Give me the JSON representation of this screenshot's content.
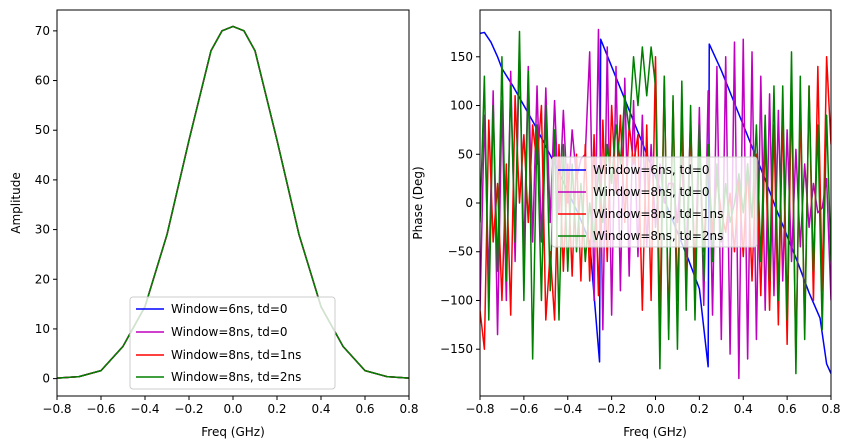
{
  "chart_data": [
    {
      "type": "line",
      "title": "",
      "xlabel": "Freq (GHz)",
      "ylabel": "Amplitude",
      "xlim": [
        -0.8,
        0.8
      ],
      "ylim": [
        -3.5,
        74.2
      ],
      "xticks": [
        -0.8,
        -0.6,
        -0.4,
        -0.2,
        0.0,
        0.2,
        0.4,
        0.6,
        0.8
      ],
      "xtick_labels": [
        "−0.8",
        "−0.6",
        "−0.4",
        "−0.2",
        "0.0",
        "0.2",
        "0.4",
        "0.6",
        "0.8"
      ],
      "yticks": [
        0,
        10,
        20,
        30,
        40,
        50,
        60,
        70
      ],
      "ytick_labels": [
        "0",
        "10",
        "20",
        "30",
        "40",
        "50",
        "60",
        "70"
      ],
      "grid": false,
      "legend_position": "lower-center",
      "series": [
        {
          "name": "Window=6ns, td=0",
          "color": "#0000ff",
          "x": [
            -0.8,
            -0.7,
            -0.6,
            -0.5,
            -0.4,
            -0.3,
            -0.2,
            -0.1,
            -0.05,
            0.0,
            0.05,
            0.1,
            0.2,
            0.3,
            0.4,
            0.5,
            0.6,
            0.7,
            0.8
          ],
          "y": [
            0.1,
            0.4,
            1.6,
            6.5,
            14.5,
            29,
            48,
            66,
            70,
            70.9,
            70,
            66,
            48,
            29,
            14.5,
            6.5,
            1.6,
            0.4,
            0.1
          ]
        },
        {
          "name": "Window=8ns, td=0",
          "color": "#bf00bf",
          "x": [
            -0.8,
            -0.7,
            -0.6,
            -0.5,
            -0.4,
            -0.3,
            -0.2,
            -0.1,
            -0.05,
            0.0,
            0.05,
            0.1,
            0.2,
            0.3,
            0.4,
            0.5,
            0.6,
            0.7,
            0.8
          ],
          "y": [
            0.1,
            0.4,
            1.6,
            6.5,
            14.5,
            29,
            48,
            66,
            70,
            70.9,
            70,
            66,
            48,
            29,
            14.5,
            6.5,
            1.6,
            0.4,
            0.1
          ]
        },
        {
          "name": "Window=8ns, td=1ns",
          "color": "#ff0000",
          "x": [
            -0.8,
            -0.7,
            -0.6,
            -0.5,
            -0.4,
            -0.3,
            -0.2,
            -0.1,
            -0.05,
            0.0,
            0.05,
            0.1,
            0.2,
            0.3,
            0.4,
            0.5,
            0.6,
            0.7,
            0.8
          ],
          "y": [
            0.1,
            0.4,
            1.6,
            6.5,
            14.5,
            29,
            48,
            66,
            70,
            70.9,
            70,
            66,
            48,
            29,
            14.5,
            6.5,
            1.6,
            0.4,
            0.1
          ]
        },
        {
          "name": "Window=8ns, td=2ns",
          "color": "#008000",
          "x": [
            -0.8,
            -0.7,
            -0.6,
            -0.5,
            -0.4,
            -0.3,
            -0.2,
            -0.1,
            -0.05,
            0.0,
            0.05,
            0.1,
            0.2,
            0.3,
            0.4,
            0.5,
            0.6,
            0.7,
            0.8
          ],
          "y": [
            0.1,
            0.4,
            1.6,
            6.5,
            14.5,
            29,
            48,
            66,
            70,
            70.9,
            70,
            66,
            48,
            29,
            14.5,
            6.5,
            1.6,
            0.4,
            0.1
          ]
        }
      ]
    },
    {
      "type": "line",
      "title": "",
      "xlabel": "Freq (GHz)",
      "ylabel": "Phase (Deg)",
      "xlim": [
        -0.8,
        0.8
      ],
      "ylim": [
        -198,
        198
      ],
      "xticks": [
        -0.8,
        -0.6,
        -0.4,
        -0.2,
        0.0,
        0.2,
        0.4,
        0.6,
        0.8
      ],
      "xtick_labels": [
        "−0.8",
        "−0.6",
        "−0.4",
        "−0.2",
        "0.0",
        "0.2",
        "0.4",
        "0.6",
        "0.8"
      ],
      "yticks": [
        -150,
        -100,
        -50,
        0,
        50,
        100,
        150
      ],
      "ytick_labels": [
        "−150",
        "−100",
        "−50",
        "0",
        "50",
        "100",
        "150"
      ],
      "grid": false,
      "legend_position": "center",
      "series": [
        {
          "name": "Window=6ns, td=0",
          "color": "#0000ff",
          "x": [
            -0.8,
            -0.78,
            -0.75,
            -0.72,
            -0.7,
            -0.65,
            -0.6,
            -0.55,
            -0.5,
            -0.45,
            -0.4,
            -0.35,
            -0.3,
            -0.255,
            -0.25,
            -0.2,
            -0.15,
            -0.1,
            -0.05,
            0.0,
            0.05,
            0.1,
            0.15,
            0.2,
            0.24,
            0.245,
            0.3,
            0.35,
            0.4,
            0.45,
            0.5,
            0.55,
            0.6,
            0.65,
            0.7,
            0.75,
            0.78,
            0.8
          ],
          "y": [
            174,
            175,
            165,
            150,
            138,
            120,
            100,
            80,
            58,
            36,
            12,
            -12,
            -40,
            -163,
            168,
            140,
            112,
            84,
            56,
            27,
            -2,
            -30,
            -58,
            -88,
            -168,
            163,
            136,
            108,
            80,
            52,
            24,
            -6,
            -34,
            -62,
            -92,
            -118,
            -165,
            -175
          ]
        },
        {
          "name": "Window=8ns, td=0",
          "color": "#bf00bf",
          "x": [
            -0.8,
            -0.78,
            -0.76,
            -0.74,
            -0.72,
            -0.7,
            -0.68,
            -0.66,
            -0.64,
            -0.62,
            -0.6,
            -0.58,
            -0.56,
            -0.54,
            -0.52,
            -0.5,
            -0.48,
            -0.46,
            -0.44,
            -0.42,
            -0.4,
            -0.38,
            -0.36,
            -0.34,
            -0.32,
            -0.3,
            -0.28,
            -0.26,
            -0.24,
            -0.22,
            -0.2,
            -0.18,
            -0.16,
            -0.14,
            -0.12,
            -0.1,
            -0.08,
            -0.06,
            -0.04,
            -0.02,
            0.0,
            0.02,
            0.04,
            0.06,
            0.08,
            0.1,
            0.12,
            0.14,
            0.16,
            0.18,
            0.2,
            0.22,
            0.24,
            0.26,
            0.28,
            0.3,
            0.32,
            0.34,
            0.36,
            0.38,
            0.4,
            0.42,
            0.44,
            0.46,
            0.48,
            0.5,
            0.52,
            0.54,
            0.56,
            0.58,
            0.6,
            0.62,
            0.64,
            0.66,
            0.68,
            0.7,
            0.72,
            0.74,
            0.76,
            0.78,
            0.8
          ],
          "y": [
            -110,
            90,
            -80,
            115,
            -135,
            105,
            -100,
            135,
            -60,
            160,
            -55,
            140,
            -40,
            120,
            -40,
            118,
            -20,
            105,
            -10,
            95,
            0,
            75,
            25,
            45,
            50,
            155,
            -100,
            178,
            -130,
            160,
            -115,
            140,
            -90,
            128,
            -75,
            105,
            -55,
            90,
            -45,
            60,
            -25,
            40,
            0,
            20,
            20,
            -20,
            45,
            -55,
            85,
            -80,
            98,
            -105,
            115,
            -115,
            140,
            -140,
            150,
            -155,
            165,
            -180,
            168,
            -160,
            155,
            -140,
            130,
            -110,
            112,
            -95,
            95,
            -80,
            75,
            -60,
            55,
            -45,
            40,
            -25,
            20,
            -10,
            -5,
            25,
            -100
          ]
        },
        {
          "name": "Window=8ns, td=1ns",
          "color": "#ff0000",
          "x": [
            -0.8,
            -0.78,
            -0.76,
            -0.74,
            -0.72,
            -0.7,
            -0.68,
            -0.66,
            -0.64,
            -0.62,
            -0.6,
            -0.58,
            -0.56,
            -0.54,
            -0.52,
            -0.5,
            -0.48,
            -0.46,
            -0.44,
            -0.42,
            -0.4,
            -0.38,
            -0.36,
            -0.34,
            -0.32,
            -0.3,
            -0.28,
            -0.26,
            -0.24,
            -0.22,
            -0.2,
            -0.18,
            -0.16,
            -0.14,
            -0.12,
            -0.1,
            -0.08,
            -0.06,
            -0.04,
            -0.02,
            0.0,
            0.02,
            0.04,
            0.06,
            0.08,
            0.1,
            0.12,
            0.14,
            0.16,
            0.18,
            0.2,
            0.22,
            0.24,
            0.26,
            0.28,
            0.3,
            0.32,
            0.34,
            0.36,
            0.38,
            0.4,
            0.42,
            0.44,
            0.46,
            0.48,
            0.5,
            0.52,
            0.54,
            0.56,
            0.58,
            0.6,
            0.62,
            0.64,
            0.66,
            0.68,
            0.7,
            0.72,
            0.74,
            0.76,
            0.78,
            0.8
          ],
          "y": [
            -110,
            -150,
            85,
            -40,
            20,
            -100,
            40,
            -115,
            110,
            0,
            70,
            -20,
            80,
            40,
            100,
            -120,
            -50,
            -120,
            60,
            -70,
            40,
            -75,
            50,
            -80,
            60,
            -80,
            70,
            -95,
            85,
            -60,
            100,
            10,
            90,
            -20,
            80,
            40,
            70,
            -110,
            80,
            -100,
            150,
            -120,
            130,
            -130,
            105,
            -100,
            85,
            -90,
            80,
            -75,
            60,
            -50,
            45,
            -30,
            25,
            -10,
            -30,
            10,
            -50,
            25,
            -55,
            40,
            -80,
            50,
            -95,
            70,
            -110,
            80,
            -125,
            95,
            -145,
            115,
            -160,
            100,
            -130,
            120,
            -100,
            140,
            -90,
            150,
            60
          ]
        },
        {
          "name": "Window=8ns, td=2ns",
          "color": "#008000",
          "x": [
            -0.8,
            -0.78,
            -0.76,
            -0.74,
            -0.72,
            -0.7,
            -0.68,
            -0.66,
            -0.64,
            -0.62,
            -0.6,
            -0.58,
            -0.56,
            -0.54,
            -0.52,
            -0.5,
            -0.48,
            -0.46,
            -0.44,
            -0.42,
            -0.4,
            -0.38,
            -0.36,
            -0.34,
            -0.32,
            -0.3,
            -0.28,
            -0.26,
            -0.24,
            -0.22,
            -0.2,
            -0.18,
            -0.16,
            -0.14,
            -0.12,
            -0.1,
            -0.08,
            -0.06,
            -0.04,
            -0.02,
            0.0,
            0.02,
            0.04,
            0.06,
            0.08,
            0.1,
            0.12,
            0.14,
            0.16,
            0.18,
            0.2,
            0.22,
            0.24,
            0.26,
            0.28,
            0.3,
            0.32,
            0.34,
            0.36,
            0.38,
            0.4,
            0.42,
            0.44,
            0.46,
            0.48,
            0.5,
            0.52,
            0.54,
            0.56,
            0.58,
            0.6,
            0.62,
            0.64,
            0.66,
            0.68,
            0.7,
            0.72,
            0.74,
            0.76,
            0.78,
            0.8
          ],
          "y": [
            -20,
            130,
            -120,
            100,
            -70,
            150,
            -80,
            120,
            -40,
            176,
            -100,
            135,
            -160,
            80,
            -100,
            100,
            -90,
            75,
            -120,
            60,
            -70,
            40,
            -50,
            20,
            -60,
            0,
            -40,
            35,
            -20,
            60,
            20,
            80,
            40,
            110,
            75,
            150,
            100,
            160,
            110,
            160,
            120,
            -170,
            130,
            -140,
            110,
            -150,
            125,
            -110,
            100,
            -120,
            80,
            -80,
            60,
            -60,
            40,
            -40,
            20,
            -20,
            0,
            30,
            -10,
            40,
            -15,
            80,
            -60,
            90,
            -80,
            120,
            -100,
            120,
            -120,
            155,
            -175,
            130,
            -140,
            120,
            -70,
            80,
            -130,
            90,
            -60
          ]
        }
      ]
    }
  ]
}
